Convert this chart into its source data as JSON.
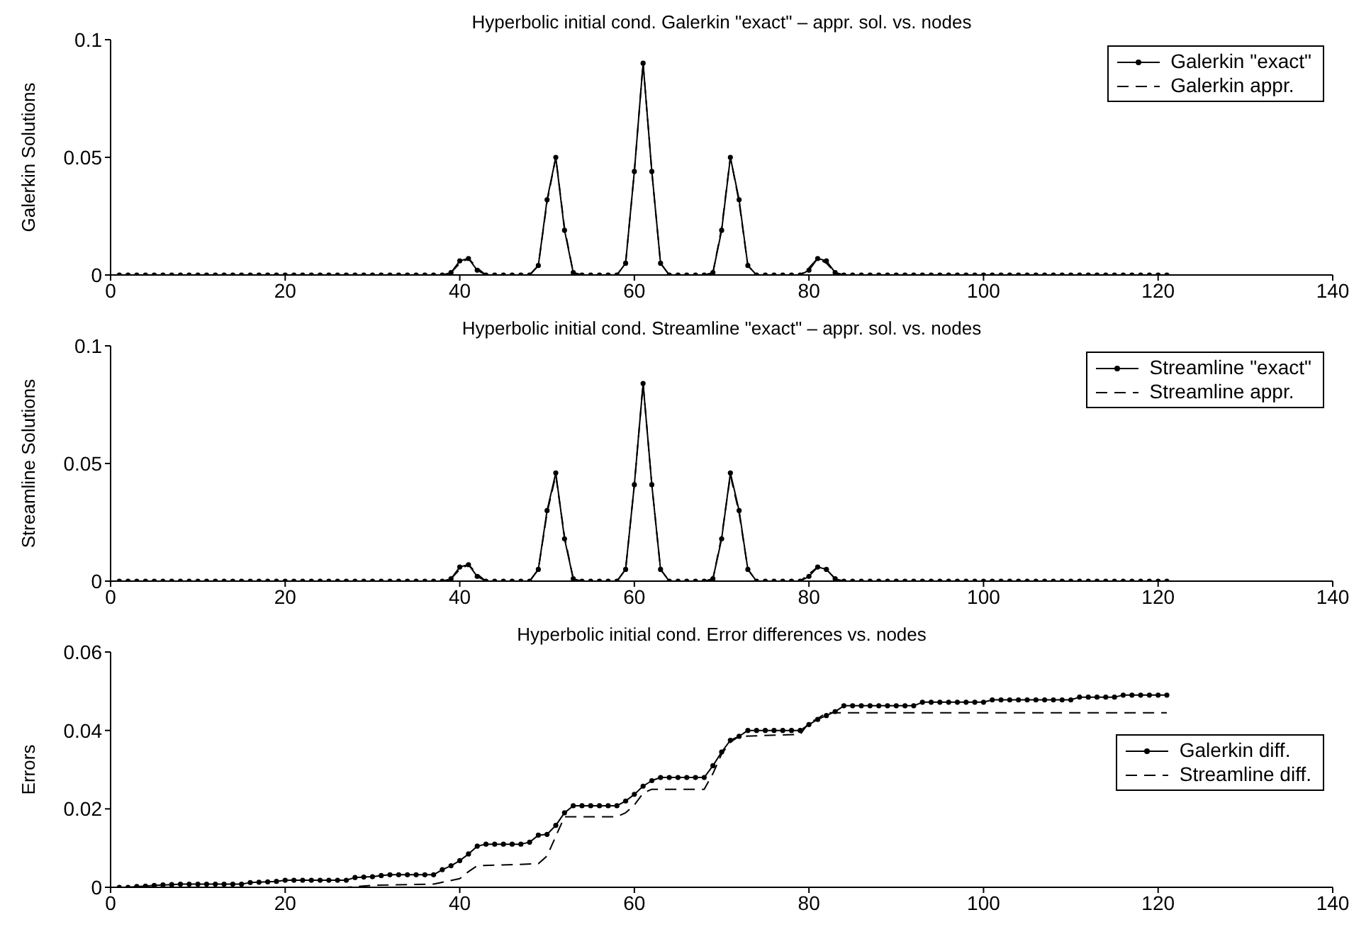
{
  "chart_data": [
    {
      "type": "line",
      "title": "Hyperbolic initial cond. Galerkin \"exact\" – appr. sol. vs. nodes",
      "ylabel": "Galerkin Solutions",
      "x": [
        1,
        2,
        3,
        4,
        5,
        6,
        7,
        8,
        9,
        10,
        11,
        12,
        13,
        14,
        15,
        16,
        17,
        18,
        19,
        20,
        21,
        22,
        23,
        24,
        25,
        26,
        27,
        28,
        29,
        30,
        31,
        32,
        33,
        34,
        35,
        36,
        37,
        38,
        39,
        40,
        41,
        42,
        43,
        44,
        45,
        46,
        47,
        48,
        49,
        50,
        51,
        52,
        53,
        54,
        55,
        56,
        57,
        58,
        59,
        60,
        61,
        62,
        63,
        64,
        65,
        66,
        67,
        68,
        69,
        70,
        71,
        72,
        73,
        74,
        75,
        76,
        77,
        78,
        79,
        80,
        81,
        82,
        83,
        84,
        85,
        86,
        87,
        88,
        89,
        90,
        91,
        92,
        93,
        94,
        95,
        96,
        97,
        98,
        99,
        100,
        101,
        102,
        103,
        104,
        105,
        106,
        107,
        108,
        109,
        110,
        111,
        112,
        113,
        114,
        115,
        116,
        117,
        118,
        119,
        120,
        121
      ],
      "series": [
        {
          "name": "Galerkin \"exact\"",
          "color": "#000000",
          "marker": "circle",
          "line_style": "solid",
          "values": [
            0,
            0,
            0,
            0,
            0,
            0,
            0,
            0,
            0,
            0,
            0,
            0,
            0,
            0,
            0,
            0,
            0,
            0,
            0,
            0,
            0,
            0,
            0,
            0,
            0,
            0,
            0,
            0,
            0,
            0,
            0,
            0,
            0,
            0,
            0,
            0,
            0,
            0,
            0.001,
            0.006,
            0.007,
            0.002,
            0,
            0,
            0,
            0,
            0,
            0,
            0.004,
            0.032,
            0.05,
            0.019,
            0.001,
            0,
            0,
            0,
            0,
            0,
            0.005,
            0.044,
            0.09,
            0.044,
            0.005,
            0,
            0,
            0,
            0,
            0,
            0.001,
            0.019,
            0.05,
            0.032,
            0.004,
            0,
            0,
            0,
            0,
            0,
            0,
            0.002,
            0.007,
            0.006,
            0.001,
            0,
            0,
            0,
            0,
            0,
            0,
            0,
            0,
            0,
            0,
            0,
            0,
            0,
            0,
            0,
            0,
            0,
            0,
            0,
            0,
            0,
            0,
            0,
            0,
            0,
            0,
            0,
            0,
            0,
            0,
            0,
            0,
            0,
            0,
            0,
            0,
            0,
            0
          ]
        },
        {
          "name": "Galerkin appr.",
          "color": "#000000",
          "marker": "none",
          "line_style": "dashed",
          "values": [
            0,
            0,
            0,
            0,
            0,
            0,
            0,
            0,
            0,
            0,
            0,
            0,
            0,
            0,
            0,
            0,
            0,
            0,
            0,
            0,
            0,
            0,
            0,
            0,
            0,
            0,
            0,
            0,
            0,
            0,
            0,
            0,
            0,
            0,
            0,
            0,
            0,
            0,
            0.001,
            0.005,
            0.007,
            0.003,
            0,
            0,
            0,
            0,
            0,
            0,
            0.004,
            0.031,
            0.05,
            0.02,
            0.001,
            0,
            0,
            0,
            0,
            0,
            0.005,
            0.044,
            0.09,
            0.044,
            0.005,
            0,
            0,
            0,
            0,
            0,
            0.001,
            0.02,
            0.05,
            0.031,
            0.004,
            0,
            0,
            0,
            0,
            0,
            0,
            0.003,
            0.007,
            0.005,
            0.001,
            0,
            0,
            0,
            0,
            0,
            0,
            0,
            0,
            0,
            0,
            0,
            0,
            0,
            0,
            0,
            0,
            0,
            0,
            0,
            0,
            0,
            0,
            0,
            0,
            0,
            0,
            0,
            0,
            0,
            0,
            0,
            0,
            0,
            0,
            0,
            0,
            0,
            0
          ]
        }
      ],
      "xlim": [
        0,
        140
      ],
      "xticks": [
        0,
        20,
        40,
        60,
        80,
        100,
        120,
        140
      ],
      "ylim": [
        0,
        0.1
      ],
      "yticks": [
        0,
        0.05,
        0.1
      ],
      "grid": false,
      "legend": "top right"
    },
    {
      "type": "line",
      "title": "Hyperbolic initial cond. Streamline \"exact\" – appr. sol. vs. nodes",
      "ylabel": "Streamline Solutions",
      "x": [
        1,
        2,
        3,
        4,
        5,
        6,
        7,
        8,
        9,
        10,
        11,
        12,
        13,
        14,
        15,
        16,
        17,
        18,
        19,
        20,
        21,
        22,
        23,
        24,
        25,
        26,
        27,
        28,
        29,
        30,
        31,
        32,
        33,
        34,
        35,
        36,
        37,
        38,
        39,
        40,
        41,
        42,
        43,
        44,
        45,
        46,
        47,
        48,
        49,
        50,
        51,
        52,
        53,
        54,
        55,
        56,
        57,
        58,
        59,
        60,
        61,
        62,
        63,
        64,
        65,
        66,
        67,
        68,
        69,
        70,
        71,
        72,
        73,
        74,
        75,
        76,
        77,
        78,
        79,
        80,
        81,
        82,
        83,
        84,
        85,
        86,
        87,
        88,
        89,
        90,
        91,
        92,
        93,
        94,
        95,
        96,
        97,
        98,
        99,
        100,
        101,
        102,
        103,
        104,
        105,
        106,
        107,
        108,
        109,
        110,
        111,
        112,
        113,
        114,
        115,
        116,
        117,
        118,
        119,
        120,
        121
      ],
      "series": [
        {
          "name": "Streamline \"exact\"",
          "color": "#000000",
          "marker": "circle",
          "line_style": "solid",
          "values": [
            0,
            0,
            0,
            0,
            0,
            0,
            0,
            0,
            0,
            0,
            0,
            0,
            0,
            0,
            0,
            0,
            0,
            0,
            0,
            0,
            0,
            0,
            0,
            0,
            0,
            0,
            0,
            0,
            0,
            0,
            0,
            0,
            0,
            0,
            0,
            0,
            0,
            0,
            0.001,
            0.006,
            0.007,
            0.002,
            0,
            0,
            0,
            0,
            0,
            0,
            0.005,
            0.03,
            0.046,
            0.018,
            0.001,
            0,
            0,
            0,
            0,
            0,
            0.005,
            0.041,
            0.084,
            0.041,
            0.005,
            0,
            0,
            0,
            0,
            0,
            0.001,
            0.018,
            0.046,
            0.03,
            0.005,
            0,
            0,
            0,
            0,
            0,
            0,
            0.002,
            0.006,
            0.005,
            0.001,
            0,
            0,
            0,
            0,
            0,
            0,
            0,
            0,
            0,
            0,
            0,
            0,
            0,
            0,
            0,
            0,
            0,
            0,
            0,
            0,
            0,
            0,
            0,
            0,
            0,
            0,
            0,
            0,
            0,
            0,
            0,
            0,
            0,
            0,
            0,
            0,
            0,
            0
          ]
        },
        {
          "name": "Streamline appr.",
          "color": "#000000",
          "marker": "none",
          "line_style": "dashed",
          "values": [
            0,
            0,
            0,
            0,
            0,
            0,
            0,
            0,
            0,
            0,
            0,
            0,
            0,
            0,
            0,
            0,
            0,
            0,
            0,
            0,
            0,
            0,
            0,
            0,
            0,
            0,
            0,
            0,
            0,
            0,
            0,
            0,
            0,
            0,
            0,
            0,
            0,
            0,
            0.001,
            0.005,
            0.007,
            0.003,
            0,
            0,
            0,
            0,
            0,
            0,
            0.005,
            0.029,
            0.045,
            0.019,
            0.001,
            0,
            0,
            0,
            0,
            0,
            0.005,
            0.041,
            0.084,
            0.041,
            0.005,
            0,
            0,
            0,
            0,
            0,
            0.001,
            0.019,
            0.045,
            0.029,
            0.005,
            0,
            0,
            0,
            0,
            0,
            0,
            0.003,
            0.006,
            0.005,
            0.001,
            0,
            0,
            0,
            0,
            0,
            0,
            0,
            0,
            0,
            0,
            0,
            0,
            0,
            0,
            0,
            0,
            0,
            0,
            0,
            0,
            0,
            0,
            0,
            0,
            0,
            0,
            0,
            0,
            0,
            0,
            0,
            0,
            0,
            0,
            0,
            0,
            0,
            0
          ]
        }
      ],
      "xlim": [
        0,
        140
      ],
      "xticks": [
        0,
        20,
        40,
        60,
        80,
        100,
        120,
        140
      ],
      "ylim": [
        0,
        0.1
      ],
      "yticks": [
        0,
        0.05,
        0.1
      ],
      "grid": false,
      "legend": "top right"
    },
    {
      "type": "line",
      "title": "Hyperbolic initial cond. Error differences vs. nodes",
      "ylabel": "Errors",
      "x": [
        1,
        2,
        3,
        4,
        5,
        6,
        7,
        8,
        9,
        10,
        11,
        12,
        13,
        14,
        15,
        16,
        17,
        18,
        19,
        20,
        21,
        22,
        23,
        24,
        25,
        26,
        27,
        28,
        29,
        30,
        31,
        32,
        33,
        34,
        35,
        36,
        37,
        38,
        39,
        40,
        41,
        42,
        43,
        44,
        45,
        46,
        47,
        48,
        49,
        50,
        51,
        52,
        53,
        54,
        55,
        56,
        57,
        58,
        59,
        60,
        61,
        62,
        63,
        64,
        65,
        66,
        67,
        68,
        69,
        70,
        71,
        72,
        73,
        74,
        75,
        76,
        77,
        78,
        79,
        80,
        81,
        82,
        83,
        84,
        85,
        86,
        87,
        88,
        89,
        90,
        91,
        92,
        93,
        94,
        95,
        96,
        97,
        98,
        99,
        100,
        101,
        102,
        103,
        104,
        105,
        106,
        107,
        108,
        109,
        110,
        111,
        112,
        113,
        114,
        115,
        116,
        117,
        118,
        119,
        120,
        121
      ],
      "series": [
        {
          "name": "Galerkin diff.",
          "color": "#000000",
          "marker": "circle",
          "line_style": "solid",
          "values": [
            0,
            0,
            0.0002,
            0.0003,
            0.0005,
            0.0006,
            0.0007,
            0.0008,
            0.0008,
            0.0008,
            0.0008,
            0.0008,
            0.0008,
            0.0008,
            0.0008,
            0.0012,
            0.0013,
            0.0014,
            0.0015,
            0.0018,
            0.0018,
            0.0018,
            0.0018,
            0.0018,
            0.0018,
            0.0018,
            0.0018,
            0.0025,
            0.0026,
            0.0027,
            0.003,
            0.0032,
            0.0032,
            0.0032,
            0.0032,
            0.0032,
            0.0032,
            0.0045,
            0.0055,
            0.0068,
            0.0085,
            0.0105,
            0.011,
            0.011,
            0.011,
            0.011,
            0.011,
            0.0115,
            0.0133,
            0.0135,
            0.0158,
            0.019,
            0.0208,
            0.0208,
            0.0208,
            0.0208,
            0.0208,
            0.0208,
            0.022,
            0.0237,
            0.0258,
            0.0272,
            0.028,
            0.028,
            0.028,
            0.028,
            0.028,
            0.028,
            0.031,
            0.0345,
            0.0375,
            0.0385,
            0.04,
            0.04,
            0.04,
            0.04,
            0.04,
            0.04,
            0.04,
            0.0415,
            0.0428,
            0.0438,
            0.0448,
            0.0463,
            0.0463,
            0.0463,
            0.0463,
            0.0463,
            0.0463,
            0.0463,
            0.0463,
            0.0463,
            0.0472,
            0.0472,
            0.0472,
            0.0472,
            0.0472,
            0.0472,
            0.0472,
            0.0472,
            0.0478,
            0.0478,
            0.0478,
            0.0478,
            0.0478,
            0.0478,
            0.0478,
            0.0478,
            0.0478,
            0.0478,
            0.0485,
            0.0485,
            0.0485,
            0.0485,
            0.0485,
            0.049,
            0.049,
            0.049,
            0.049,
            0.049,
            0.049
          ]
        },
        {
          "name": "Streamline diff.",
          "color": "#000000",
          "marker": "none",
          "line_style": "dashed",
          "x": [
            1,
            27,
            30,
            37,
            40,
            41,
            42,
            49,
            50,
            51,
            52,
            58,
            59,
            60,
            61,
            62,
            68,
            69,
            70,
            71,
            72,
            79,
            80,
            81,
            82,
            121
          ],
          "values": [
            0,
            0,
            0.0005,
            0.0008,
            0.0022,
            0.004,
            0.0055,
            0.006,
            0.008,
            0.013,
            0.018,
            0.018,
            0.019,
            0.021,
            0.024,
            0.025,
            0.025,
            0.029,
            0.034,
            0.037,
            0.0385,
            0.039,
            0.042,
            0.043,
            0.0445,
            0.0445
          ]
        }
      ],
      "xlim": [
        0,
        140
      ],
      "xticks": [
        0,
        20,
        40,
        60,
        80,
        100,
        120,
        140
      ],
      "ylim": [
        0,
        0.06
      ],
      "yticks": [
        0,
        0.02,
        0.04,
        0.06
      ],
      "grid": false,
      "legend": "right"
    }
  ]
}
